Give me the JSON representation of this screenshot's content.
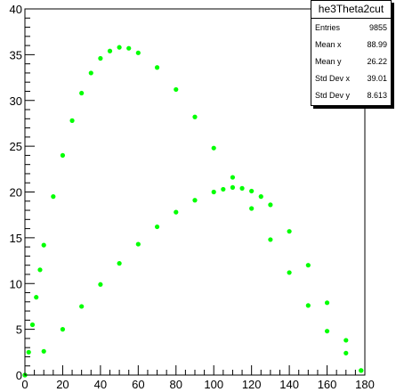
{
  "stats": {
    "title": "he3Theta2cut",
    "rows": [
      {
        "label": "Entries",
        "value": "9855"
      },
      {
        "label": "Mean x",
        "value": "88.99"
      },
      {
        "label": "Mean y",
        "value": "26.22"
      },
      {
        "label": "Std Dev x",
        "value": "39.01"
      },
      {
        "label": "Std Dev y",
        "value": "8.613"
      }
    ]
  },
  "chart_data": {
    "type": "scatter",
    "title": "",
    "xlabel": "",
    "ylabel": "",
    "xlim": [
      0,
      180
    ],
    "ylim": [
      0,
      40
    ],
    "grid": false,
    "legend": "none",
    "marker_color": "#00ff00",
    "x_ticks": [
      "0",
      "20",
      "40",
      "60",
      "80",
      "100",
      "120",
      "140",
      "160",
      "180"
    ],
    "y_ticks": [
      "0",
      "5",
      "10",
      "15",
      "20",
      "25",
      "30",
      "35",
      "40"
    ],
    "series": [
      {
        "x": [
          0,
          2,
          4,
          6,
          8,
          10,
          15,
          20,
          25,
          30,
          35,
          40,
          45,
          50,
          55,
          60,
          70,
          80,
          90,
          100,
          110,
          120,
          130,
          140,
          150,
          160,
          170,
          178
        ],
        "y": [
          0,
          2.5,
          5.5,
          8.5,
          11.5,
          14.2,
          19.5,
          24.0,
          27.8,
          30.8,
          33.0,
          34.6,
          35.4,
          35.8,
          35.7,
          35.2,
          33.6,
          31.2,
          28.2,
          24.8,
          21.6,
          18.2,
          14.8,
          11.2,
          7.6,
          4.8,
          2.4,
          0.5
        ]
      },
      {
        "x": [
          0,
          10,
          20,
          30,
          40,
          50,
          60,
          70,
          80,
          90,
          100,
          105,
          110,
          115,
          120,
          125,
          130,
          140,
          150,
          160,
          170,
          178
        ],
        "y": [
          0,
          2.6,
          5.0,
          7.5,
          9.9,
          12.2,
          14.3,
          16.2,
          17.8,
          19.1,
          20.0,
          20.3,
          20.5,
          20.4,
          20.1,
          19.5,
          18.6,
          15.7,
          12.0,
          7.9,
          3.8,
          0.5
        ]
      }
    ]
  }
}
